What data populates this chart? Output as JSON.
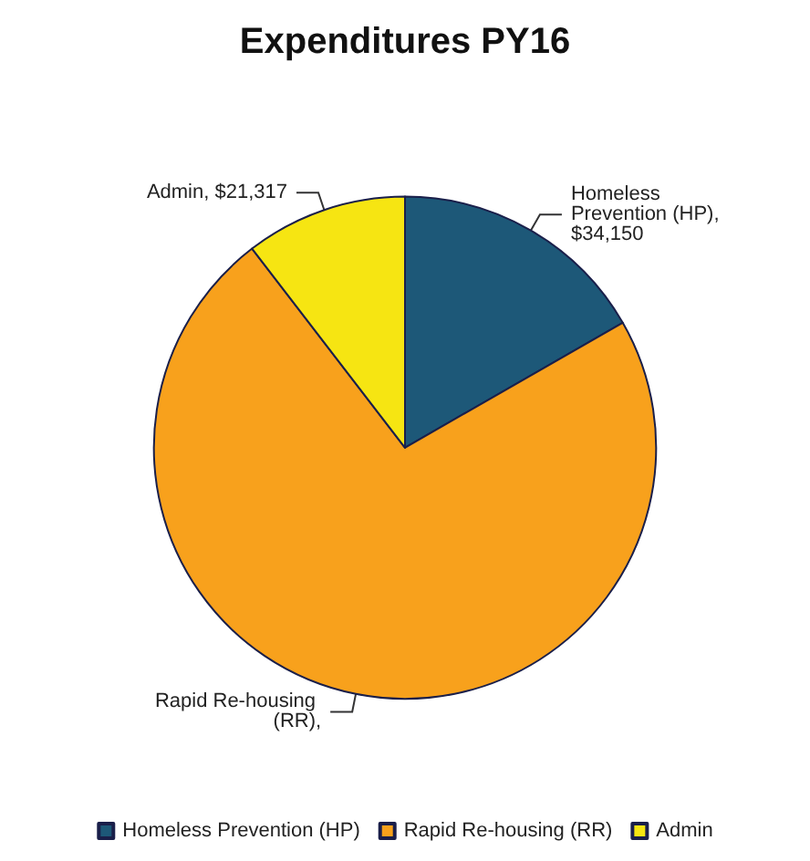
{
  "chart_data": {
    "type": "pie",
    "title": "Expenditures PY16",
    "categories": [
      "Homeless Prevention (HP)",
      "Rapid Re-housing (RR)",
      "Admin"
    ],
    "values": [
      34150,
      149000,
      21317
    ],
    "value_labels": [
      "Homeless Prevention (HP), $34,150",
      "Rapid Re-housing (RR),",
      "Admin, $21,317"
    ],
    "colors": [
      "#1d5878",
      "#f8a11c",
      "#f6e512"
    ],
    "legend": "bottom"
  }
}
